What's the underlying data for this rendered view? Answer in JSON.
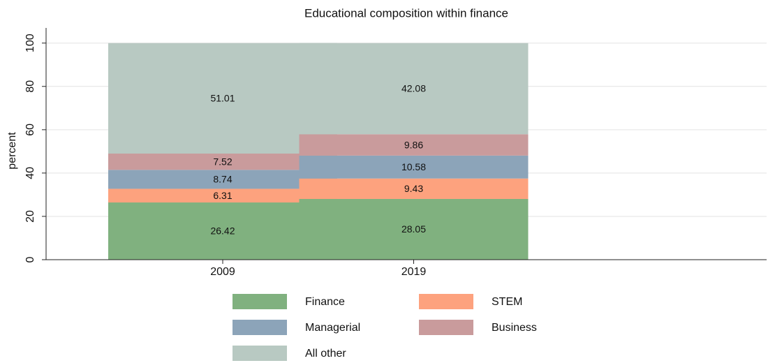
{
  "chart_data": {
    "type": "stacked_bar",
    "title": "Educational composition within finance",
    "y_label": "percent",
    "categories": [
      "2009",
      "2019"
    ],
    "series": [
      {
        "name": "Finance",
        "color": "#80b17f",
        "values": [
          26.42,
          28.05
        ]
      },
      {
        "name": "STEM",
        "color": "#fda27e",
        "values": [
          6.31,
          9.43
        ]
      },
      {
        "name": "Managerial",
        "color": "#8ca4b9",
        "values": [
          8.74,
          10.58
        ]
      },
      {
        "name": "Business",
        "color": "#c99b9c",
        "values": [
          7.52,
          9.86
        ]
      },
      {
        "name": "All other",
        "color": "#b8c9c2",
        "values": [
          51.01,
          42.08
        ]
      }
    ],
    "ylim": [
      0,
      107
    ],
    "yticks": [
      0,
      20,
      40,
      60,
      80,
      100
    ],
    "grid": true
  }
}
